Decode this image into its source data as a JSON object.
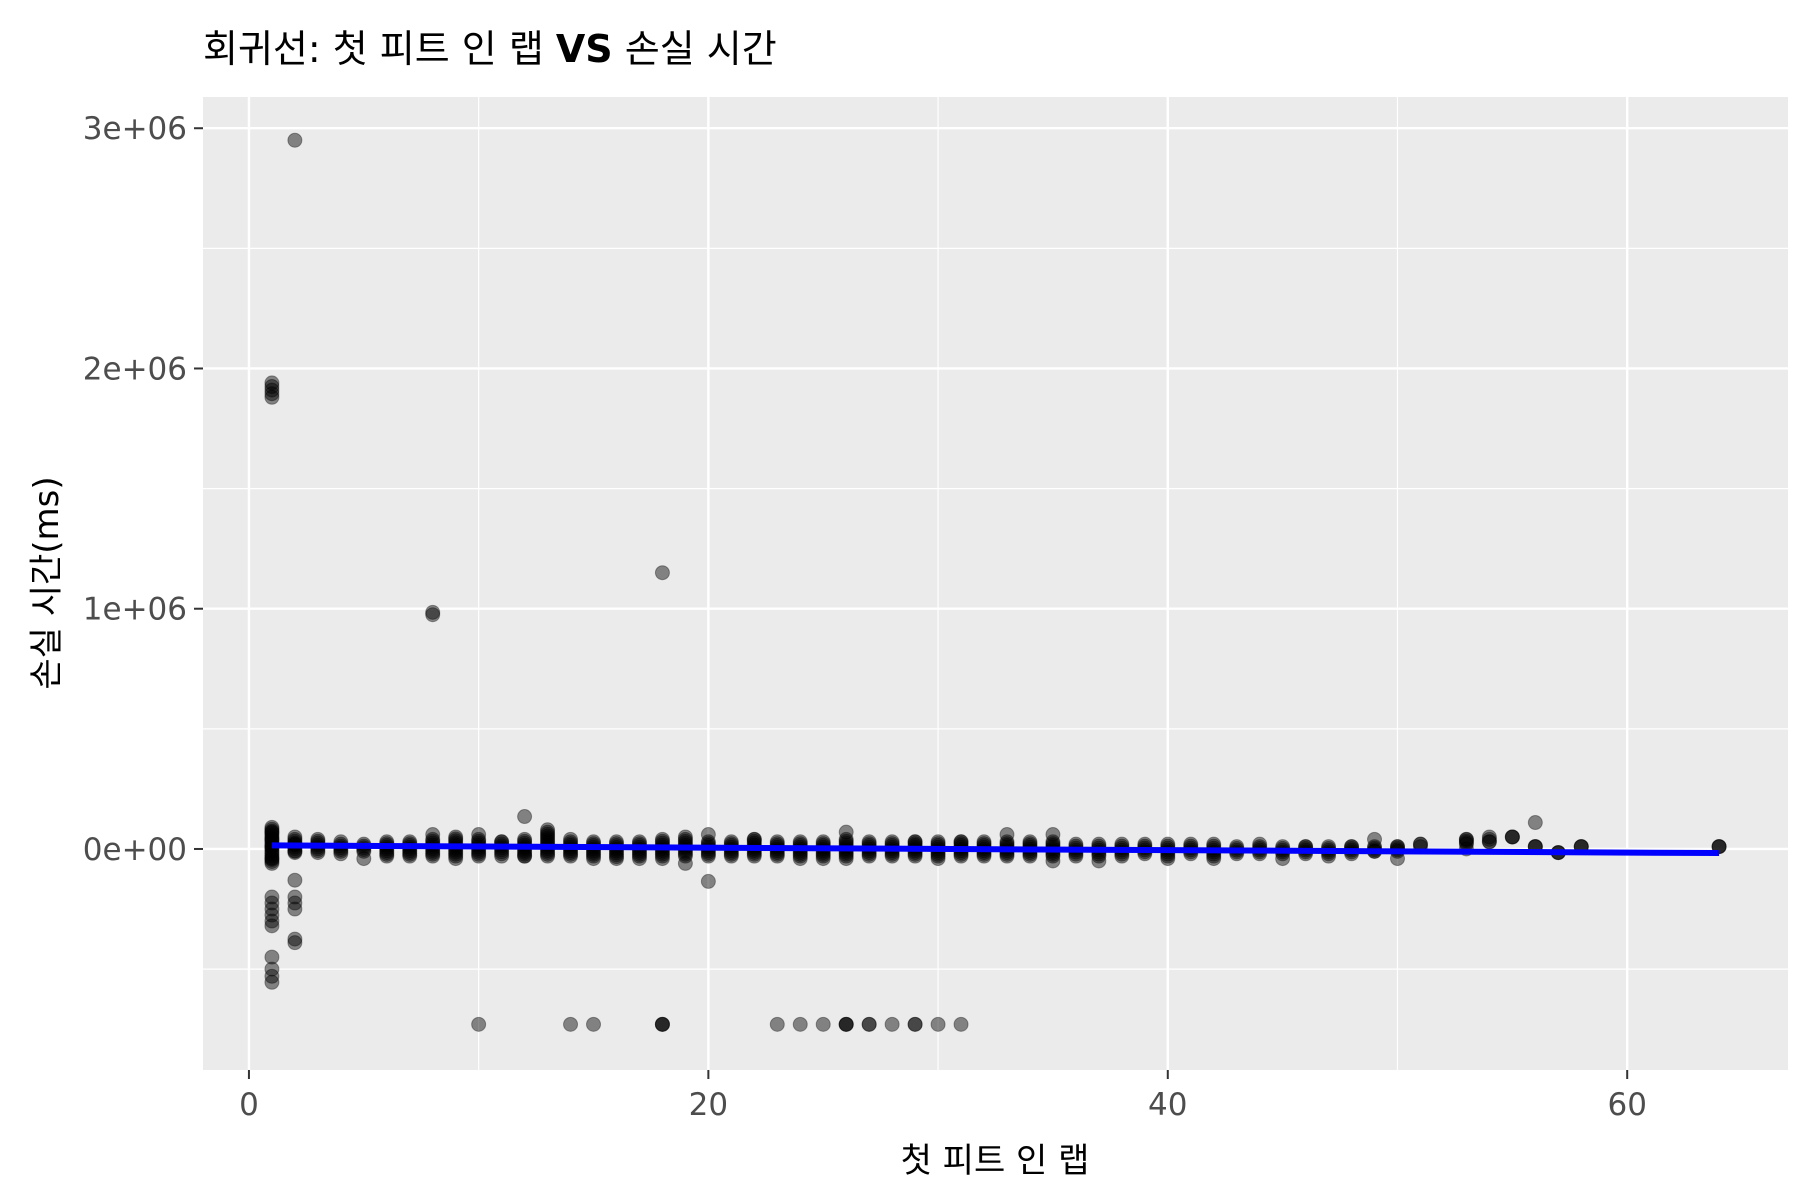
{
  "chart_data": {
    "type": "scatter",
    "title_prefix": "회귀선: 첫 피트 인 랩 ",
    "title_bold": "VS",
    "title_suffix": " 손실 시간",
    "xlabel": "첫 피트 인 랩",
    "ylabel": "손실 시간(ms)",
    "xlim": [
      -2,
      67
    ],
    "ylim": [
      -920000,
      3130000
    ],
    "x_ticks": [
      0,
      20,
      40,
      60
    ],
    "x_tick_labels": [
      "0",
      "20",
      "40",
      "60"
    ],
    "y_ticks": [
      0,
      1000000,
      2000000,
      3000000
    ],
    "y_tick_labels": [
      "0e+00",
      "1e+06",
      "2e+06",
      "3e+06"
    ],
    "grid": true,
    "panel_background": "#ebebeb",
    "grid_color": "#ffffff",
    "point_color": "#000000",
    "point_opacity": 0.45,
    "regression_color": "#0000ff",
    "regression_line": {
      "x": [
        1,
        64
      ],
      "y": [
        15000,
        -17000
      ]
    },
    "columns": [
      {
        "x": 1,
        "values": [
          -40000,
          10000,
          40000,
          70000
        ],
        "low": -60000,
        "high": 90000
      },
      {
        "x": 2,
        "values": [
          -10000,
          20000,
          50000
        ],
        "low": -15000,
        "high": 40000
      },
      {
        "x": 3,
        "values": [],
        "low": -15000,
        "high": 40000
      },
      {
        "x": 4,
        "values": [
          -20000,
          30000
        ],
        "low": -10000,
        "high": 20000
      },
      {
        "x": 5,
        "values": [
          -40000
        ],
        "low": -10000,
        "high": 20000
      },
      {
        "x": 6,
        "values": [],
        "low": -30000,
        "high": 30000
      },
      {
        "x": 7,
        "values": [],
        "low": -30000,
        "high": 30000
      },
      {
        "x": 8,
        "values": [
          60000
        ],
        "low": -30000,
        "high": 40000
      },
      {
        "x": 9,
        "values": [
          -40000
        ],
        "low": -30000,
        "high": 50000
      },
      {
        "x": 10,
        "values": [
          60000
        ],
        "low": -30000,
        "high": 40000
      },
      {
        "x": 11,
        "values": [
          -30000,
          30000
        ],
        "low": -20000,
        "high": 30000
      },
      {
        "x": 12,
        "values": [
          135000,
          -30000
        ],
        "low": -30000,
        "high": 40000
      },
      {
        "x": 13,
        "values": [
          80000
        ],
        "low": -30000,
        "high": 70000
      },
      {
        "x": 14,
        "values": [
          40000
        ],
        "low": -30000,
        "high": 30000
      },
      {
        "x": 15,
        "values": [
          -40000
        ],
        "low": -30000,
        "high": 30000
      },
      {
        "x": 16,
        "values": [],
        "low": -40000,
        "high": 30000
      },
      {
        "x": 17,
        "values": [
          -40000
        ],
        "low": -30000,
        "high": 30000
      },
      {
        "x": 18,
        "values": [
          -40000
        ],
        "low": -30000,
        "high": 40000
      },
      {
        "x": 19,
        "values": [
          -60000,
          50000
        ],
        "low": -30000,
        "high": 40000
      },
      {
        "x": 20,
        "values": [
          -135000,
          60000
        ],
        "low": -30000,
        "high": 30000
      },
      {
        "x": 21,
        "values": [],
        "low": -30000,
        "high": 30000
      },
      {
        "x": 22,
        "values": [
          40000
        ],
        "low": -30000,
        "high": 40000
      },
      {
        "x": 23,
        "values": [],
        "low": -30000,
        "high": 30000
      },
      {
        "x": 24,
        "values": [
          -40000
        ],
        "low": -30000,
        "high": 30000
      },
      {
        "x": 25,
        "values": [
          -40000
        ],
        "low": -30000,
        "high": 30000
      },
      {
        "x": 26,
        "values": [
          70000,
          -40000
        ],
        "low": -30000,
        "high": 40000
      },
      {
        "x": 27,
        "values": [],
        "low": -30000,
        "high": 30000
      },
      {
        "x": 28,
        "values": [],
        "low": -30000,
        "high": 30000
      },
      {
        "x": 29,
        "values": [
          30000
        ],
        "low": -30000,
        "high": 30000
      },
      {
        "x": 30,
        "values": [
          -40000
        ],
        "low": -30000,
        "high": 30000
      },
      {
        "x": 31,
        "values": [
          30000
        ],
        "low": -30000,
        "high": 30000
      },
      {
        "x": 32,
        "values": [],
        "low": -30000,
        "high": 30000
      },
      {
        "x": 33,
        "values": [
          60000
        ],
        "low": -30000,
        "high": 30000
      },
      {
        "x": 34,
        "values": [],
        "low": -30000,
        "high": 30000
      },
      {
        "x": 35,
        "values": [
          60000,
          -50000
        ],
        "low": -30000,
        "high": 30000
      },
      {
        "x": 36,
        "values": [],
        "low": -30000,
        "high": 20000
      },
      {
        "x": 37,
        "values": [
          -50000
        ],
        "low": -30000,
        "high": 20000
      },
      {
        "x": 38,
        "values": [],
        "low": -30000,
        "high": 20000
      },
      {
        "x": 39,
        "values": [],
        "low": -20000,
        "high": 20000
      },
      {
        "x": 40,
        "values": [
          -40000
        ],
        "low": -30000,
        "high": 20000
      },
      {
        "x": 41,
        "values": [],
        "low": -20000,
        "high": 20000
      },
      {
        "x": 42,
        "values": [
          -40000
        ],
        "low": -30000,
        "high": 20000
      },
      {
        "x": 43,
        "values": [],
        "low": -20000,
        "high": 10000
      },
      {
        "x": 44,
        "values": [
          20000
        ],
        "low": -20000,
        "high": 10000
      },
      {
        "x": 45,
        "values": [
          -40000
        ],
        "low": -20000,
        "high": 10000
      },
      {
        "x": 46,
        "values": [
          10000
        ],
        "low": -20000,
        "high": 10000
      },
      {
        "x": 47,
        "values": [
          -30000
        ],
        "low": -20000,
        "high": 10000
      },
      {
        "x": 48,
        "values": [
          10000
        ],
        "low": -20000,
        "high": 10000
      },
      {
        "x": 49,
        "values": [
          40000,
          -10000
        ],
        "low": -10000,
        "high": 10000
      },
      {
        "x": 50,
        "values": [
          -40000,
          10000
        ],
        "low": -10000,
        "high": 10000
      },
      {
        "x": 51,
        "values": [
          20000
        ],
        "low": 10000,
        "high": 20000
      },
      {
        "x": 53,
        "values": [
          40000,
          0
        ],
        "low": 20000,
        "high": 40000
      },
      {
        "x": 54,
        "values": [
          50000,
          30000
        ],
        "low": 30000,
        "high": 40000
      },
      {
        "x": 55,
        "values": [
          50000
        ],
        "low": 50000,
        "high": 50000
      },
      {
        "x": 56,
        "values": [
          110000,
          10000
        ],
        "low": 10000,
        "high": 10000
      },
      {
        "x": 57,
        "values": [
          -15000
        ],
        "low": -15000,
        "high": -15000
      },
      {
        "x": 58,
        "values": [
          10000
        ],
        "low": 10000,
        "high": 10000
      },
      {
        "x": 64,
        "values": [
          10000
        ],
        "low": 10000,
        "high": 10000
      }
    ],
    "outliers": [
      {
        "x": 2,
        "y": 2950000
      },
      {
        "x": 18,
        "y": 1150000
      },
      {
        "x": 1,
        "y": 1880000
      },
      {
        "x": 1,
        "y": 1895000
      },
      {
        "x": 1,
        "y": 1910000
      },
      {
        "x": 1,
        "y": 1925000
      },
      {
        "x": 1,
        "y": 1940000
      },
      {
        "x": 8,
        "y": 975000
      },
      {
        "x": 8,
        "y": 985000
      },
      {
        "x": 1,
        "y": -200000
      },
      {
        "x": 1,
        "y": -225000
      },
      {
        "x": 1,
        "y": -250000
      },
      {
        "x": 1,
        "y": -275000
      },
      {
        "x": 1,
        "y": -300000
      },
      {
        "x": 1,
        "y": -320000
      },
      {
        "x": 1,
        "y": -450000
      },
      {
        "x": 1,
        "y": -500000
      },
      {
        "x": 1,
        "y": -530000
      },
      {
        "x": 1,
        "y": -555000
      },
      {
        "x": 2,
        "y": -130000
      },
      {
        "x": 2,
        "y": -200000
      },
      {
        "x": 2,
        "y": -225000
      },
      {
        "x": 2,
        "y": -250000
      },
      {
        "x": 2,
        "y": -375000
      },
      {
        "x": 2,
        "y": -390000
      },
      {
        "x": 10,
        "y": -730000
      },
      {
        "x": 14,
        "y": -730000
      },
      {
        "x": 15,
        "y": -730000
      },
      {
        "x": 18,
        "y": -730000
      },
      {
        "x": 18,
        "y": -730000
      },
      {
        "x": 18,
        "y": -730000
      },
      {
        "x": 23,
        "y": -730000
      },
      {
        "x": 24,
        "y": -730000
      },
      {
        "x": 25,
        "y": -730000
      },
      {
        "x": 26,
        "y": -730000
      },
      {
        "x": 26,
        "y": -730000
      },
      {
        "x": 26,
        "y": -730000
      },
      {
        "x": 27,
        "y": -730000
      },
      {
        "x": 27,
        "y": -730000
      },
      {
        "x": 28,
        "y": -730000
      },
      {
        "x": 29,
        "y": -730000
      },
      {
        "x": 29,
        "y": -730000
      },
      {
        "x": 30,
        "y": -730000
      },
      {
        "x": 31,
        "y": -730000
      }
    ]
  }
}
